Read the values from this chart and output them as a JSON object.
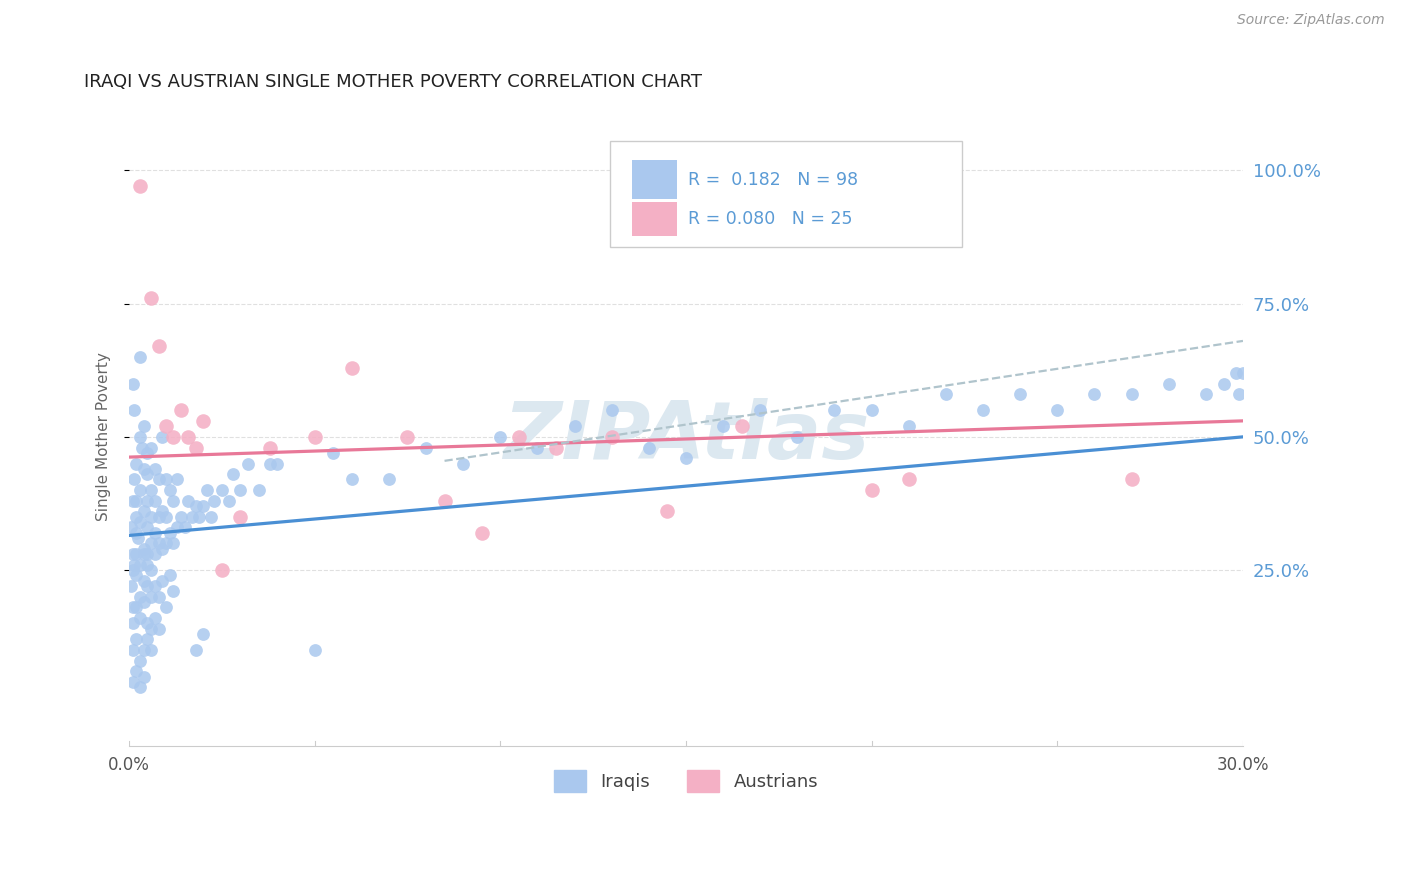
{
  "title": "IRAQI VS AUSTRIAN SINGLE MOTHER POVERTY CORRELATION CHART",
  "source": "Source: ZipAtlas.com",
  "ylabel": "Single Mother Poverty",
  "ytick_labels": [
    "25.0%",
    "50.0%",
    "75.0%",
    "100.0%"
  ],
  "ytick_values": [
    0.25,
    0.5,
    0.75,
    1.0
  ],
  "xlim": [
    0.0,
    0.3
  ],
  "ylim": [
    -0.08,
    1.08
  ],
  "blue_color": "#aac8ee",
  "pink_color": "#f4b0c5",
  "blue_line_color": "#4a8fd4",
  "pink_line_color": "#e87898",
  "dashed_line_color": "#b0c4cc",
  "watermark_color": "#dce8f0",
  "title_color": "#222222",
  "axis_label_color": "#5b9bd5",
  "background_color": "#ffffff",
  "grid_color": "#e0e0e0",
  "iraqis_x": [
    0.0005,
    0.001,
    0.001,
    0.001,
    0.0015,
    0.0015,
    0.002,
    0.002,
    0.002,
    0.002,
    0.0025,
    0.003,
    0.003,
    0.003,
    0.003,
    0.0035,
    0.004,
    0.004,
    0.004,
    0.004,
    0.005,
    0.005,
    0.005,
    0.005,
    0.005,
    0.006,
    0.006,
    0.006,
    0.006,
    0.007,
    0.007,
    0.007,
    0.007,
    0.008,
    0.008,
    0.008,
    0.009,
    0.009,
    0.009,
    0.01,
    0.01,
    0.01,
    0.011,
    0.011,
    0.012,
    0.012,
    0.013,
    0.013,
    0.014,
    0.015,
    0.016,
    0.017,
    0.018,
    0.019,
    0.02,
    0.021,
    0.022,
    0.023,
    0.025,
    0.027,
    0.028,
    0.03,
    0.032,
    0.035,
    0.038,
    0.04,
    0.05,
    0.055,
    0.06,
    0.07,
    0.08,
    0.09,
    0.1,
    0.11,
    0.12,
    0.13,
    0.14,
    0.15,
    0.16,
    0.17,
    0.18,
    0.19,
    0.2,
    0.21,
    0.22,
    0.23,
    0.24,
    0.25,
    0.26,
    0.27,
    0.28,
    0.29,
    0.295,
    0.298,
    0.299,
    0.3
  ],
  "iraqis_y": [
    0.33,
    0.6,
    0.38,
    0.28,
    0.42,
    0.55,
    0.35,
    0.32,
    0.45,
    0.38,
    0.31,
    0.5,
    0.34,
    0.4,
    0.65,
    0.48,
    0.29,
    0.36,
    0.44,
    0.52,
    0.28,
    0.33,
    0.38,
    0.43,
    0.47,
    0.3,
    0.35,
    0.4,
    0.48,
    0.28,
    0.32,
    0.38,
    0.44,
    0.3,
    0.35,
    0.42,
    0.29,
    0.36,
    0.5,
    0.3,
    0.35,
    0.42,
    0.32,
    0.4,
    0.3,
    0.38,
    0.33,
    0.42,
    0.35,
    0.33,
    0.38,
    0.35,
    0.37,
    0.35,
    0.37,
    0.4,
    0.35,
    0.38,
    0.4,
    0.38,
    0.43,
    0.4,
    0.45,
    0.4,
    0.45,
    0.45,
    0.1,
    0.47,
    0.42,
    0.42,
    0.48,
    0.45,
    0.5,
    0.48,
    0.52,
    0.55,
    0.48,
    0.46,
    0.52,
    0.55,
    0.5,
    0.55,
    0.55,
    0.52,
    0.58,
    0.55,
    0.58,
    0.55,
    0.58,
    0.58,
    0.6,
    0.58,
    0.6,
    0.62,
    0.58,
    0.62
  ],
  "iraqis_low_x": [
    0.0005,
    0.001,
    0.001,
    0.0015,
    0.002,
    0.002,
    0.003,
    0.003,
    0.004,
    0.004,
    0.005,
    0.005,
    0.006,
    0.006,
    0.007,
    0.008,
    0.009,
    0.01,
    0.011,
    0.012,
    0.001,
    0.002,
    0.003,
    0.004,
    0.005,
    0.006,
    0.007,
    0.008,
    0.001,
    0.002,
    0.003,
    0.004,
    0.005,
    0.006,
    0.001,
    0.002,
    0.003,
    0.004,
    0.018,
    0.02
  ],
  "iraqis_low_y": [
    0.22,
    0.25,
    0.18,
    0.26,
    0.24,
    0.28,
    0.2,
    0.26,
    0.23,
    0.28,
    0.22,
    0.26,
    0.2,
    0.25,
    0.22,
    0.2,
    0.23,
    0.18,
    0.24,
    0.21,
    0.15,
    0.18,
    0.16,
    0.19,
    0.15,
    0.14,
    0.16,
    0.14,
    0.1,
    0.12,
    0.08,
    0.1,
    0.12,
    0.1,
    0.04,
    0.06,
    0.03,
    0.05,
    0.1,
    0.13
  ],
  "austrians_x": [
    0.003,
    0.006,
    0.008,
    0.01,
    0.012,
    0.014,
    0.016,
    0.018,
    0.02,
    0.025,
    0.03,
    0.038,
    0.05,
    0.06,
    0.075,
    0.085,
    0.095,
    0.105,
    0.115,
    0.13,
    0.145,
    0.165,
    0.2,
    0.21,
    0.27
  ],
  "austrians_y": [
    0.97,
    0.76,
    0.67,
    0.52,
    0.5,
    0.55,
    0.5,
    0.48,
    0.53,
    0.25,
    0.35,
    0.48,
    0.5,
    0.63,
    0.5,
    0.38,
    0.32,
    0.5,
    0.48,
    0.5,
    0.36,
    0.52,
    0.4,
    0.42,
    0.42
  ],
  "iraqis_trend_x": [
    0.0,
    0.3
  ],
  "iraqis_trend_y": [
    0.315,
    0.5
  ],
  "austrians_trend_x": [
    0.0,
    0.3
  ],
  "austrians_trend_y": [
    0.462,
    0.53
  ],
  "dashed_trend_x": [
    0.085,
    0.3
  ],
  "dashed_trend_y": [
    0.455,
    0.68
  ]
}
